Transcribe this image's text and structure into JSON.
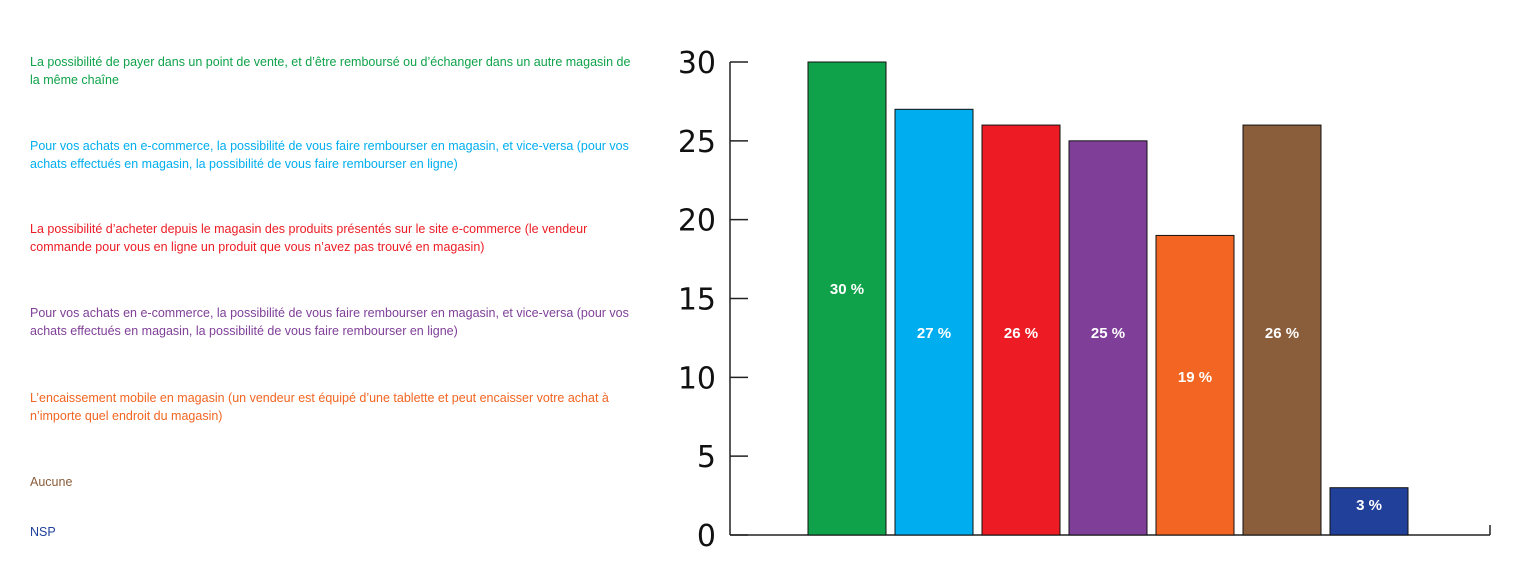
{
  "chart_data": {
    "type": "bar",
    "categories": [
      "La possibilité de payer dans un point de vente, et d’être remboursé ou d’échanger dans un autre magasin de la même chaîne",
      "Pour vos achats en e-commerce, la possibilité de vous faire rembourser en magasin, et vice-versa (pour vos achats effectués en magasin, la possibilité de vous faire rembourser en ligne)",
      "La possibilité d’acheter depuis le magasin des produits présentés sur le site e-commerce (le vendeur commande pour vous en ligne un produit que vous n’avez pas trouvé en magasin)",
      "Pour vos achats en e-commerce, la possibilité de vous faire rembourser en magasin, et vice-versa (pour vos achats effectués en magasin, la possibilité de vous faire rembourser en ligne)",
      "L’encaissement mobile en magasin (un vendeur est équipé d’une tablette et peut encaisser votre achat à n’importe quel endroit du magasin)",
      "Aucune",
      "NSP"
    ],
    "values": [
      30,
      27,
      26,
      25,
      19,
      26,
      3
    ],
    "value_labels": [
      "30 %",
      "27 %",
      "26 %",
      "25 %",
      "19 %",
      "26 %",
      "3 %"
    ],
    "colors": [
      "#0fa24a",
      "#00aeef",
      "#ed1c24",
      "#7f3f98",
      "#f26522",
      "#8a5d3b",
      "#21409a"
    ],
    "ylim": [
      0,
      30
    ],
    "yticks": [
      0,
      5,
      10,
      15,
      20,
      25,
      30
    ],
    "legend_placement": "left",
    "grid": false
  }
}
